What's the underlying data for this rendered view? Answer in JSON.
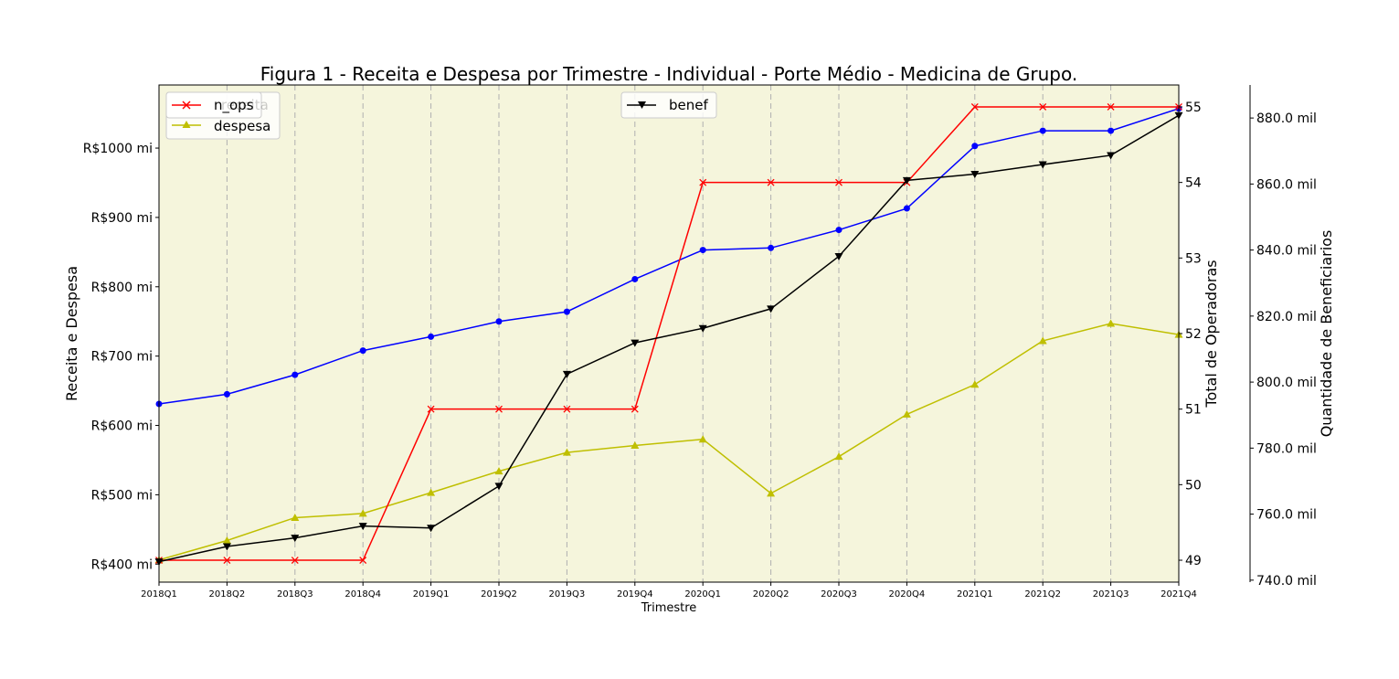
{
  "chart_data": {
    "type": "line",
    "title": "Figura 1 - Receita e Despesa por Trimestre - Individual - Porte Médio - Medicina de Grupo.",
    "xlabel": "Trimestre",
    "ylabel_left": "Receita e Despesa",
    "ylabel_right1": "Total de Operadoras",
    "ylabel_right2": "Quantidade de Beneficiarios",
    "categories": [
      "2018Q1",
      "2018Q2",
      "2018Q3",
      "2018Q4",
      "2019Q1",
      "2019Q2",
      "2019Q3",
      "2019Q4",
      "2020Q1",
      "2020Q2",
      "2020Q3",
      "2020Q4",
      "2021Q1",
      "2021Q2",
      "2021Q3",
      "2021Q4"
    ],
    "axes": {
      "left": {
        "ylim": [
          374,
          1091
        ],
        "ticks": [
          400,
          500,
          600,
          700,
          800,
          900,
          1000
        ],
        "tick_labels": [
          "R$400 mi",
          "R$500 mi",
          "R$600 mi",
          "R$700 mi",
          "R$800 mi",
          "R$900 mi",
          "R$1000 mi"
        ]
      },
      "right1": {
        "ylim": [
          48.71,
          55.29
        ],
        "ticks": [
          49,
          50,
          51,
          52,
          53,
          54,
          55
        ],
        "tick_labels": [
          "49",
          "50",
          "51",
          "52",
          "53",
          "54",
          "55"
        ]
      },
      "right2": {
        "ylim": [
          739.4,
          890.0
        ],
        "ticks": [
          740,
          760,
          780,
          800,
          820,
          840,
          860,
          880
        ],
        "tick_labels": [
          "740.0 mil",
          "760.0 mil",
          "780.0 mil",
          "800.0 mil",
          "820.0 mil",
          "840.0 mil",
          "860.0 mil",
          "880.0 mil"
        ]
      }
    },
    "series": [
      {
        "name": "receita",
        "axis": "left",
        "color": "#0000ff",
        "marker": "circle",
        "values": [
          631,
          645,
          673,
          708,
          728,
          750,
          764,
          811,
          853,
          856,
          882,
          913,
          1003,
          1025,
          1025,
          1057
        ]
      },
      {
        "name": "despesa",
        "axis": "left",
        "color": "#bfbf00",
        "marker": "triangle-up",
        "values": [
          406,
          434,
          467,
          473,
          503,
          534,
          561,
          571,
          580,
          502,
          555,
          616,
          659,
          722,
          747,
          731
        ]
      },
      {
        "name": "n_ops",
        "axis": "right1",
        "color": "#ff0000",
        "marker": "x",
        "values": [
          49,
          49,
          49,
          49,
          51,
          51,
          51,
          51,
          54,
          54,
          54,
          54,
          55,
          55,
          55,
          55
        ]
      },
      {
        "name": "benef",
        "axis": "right2",
        "color": "#000000",
        "marker": "triangle-down",
        "values": [
          745.6,
          750.2,
          752.8,
          756.4,
          755.8,
          768.5,
          802.4,
          811.9,
          816.3,
          822.2,
          838.1,
          861.1,
          863.0,
          865.9,
          868.7,
          880.8
        ]
      }
    ],
    "legend_left": {
      "placement": "upper-left",
      "entries": [
        "receita",
        "n_ops",
        "despesa"
      ]
    },
    "legend_right": {
      "placement": "upper-center",
      "entries": [
        "benef"
      ]
    },
    "grid": "vertical dashed",
    "background": "#f5f5dc"
  }
}
